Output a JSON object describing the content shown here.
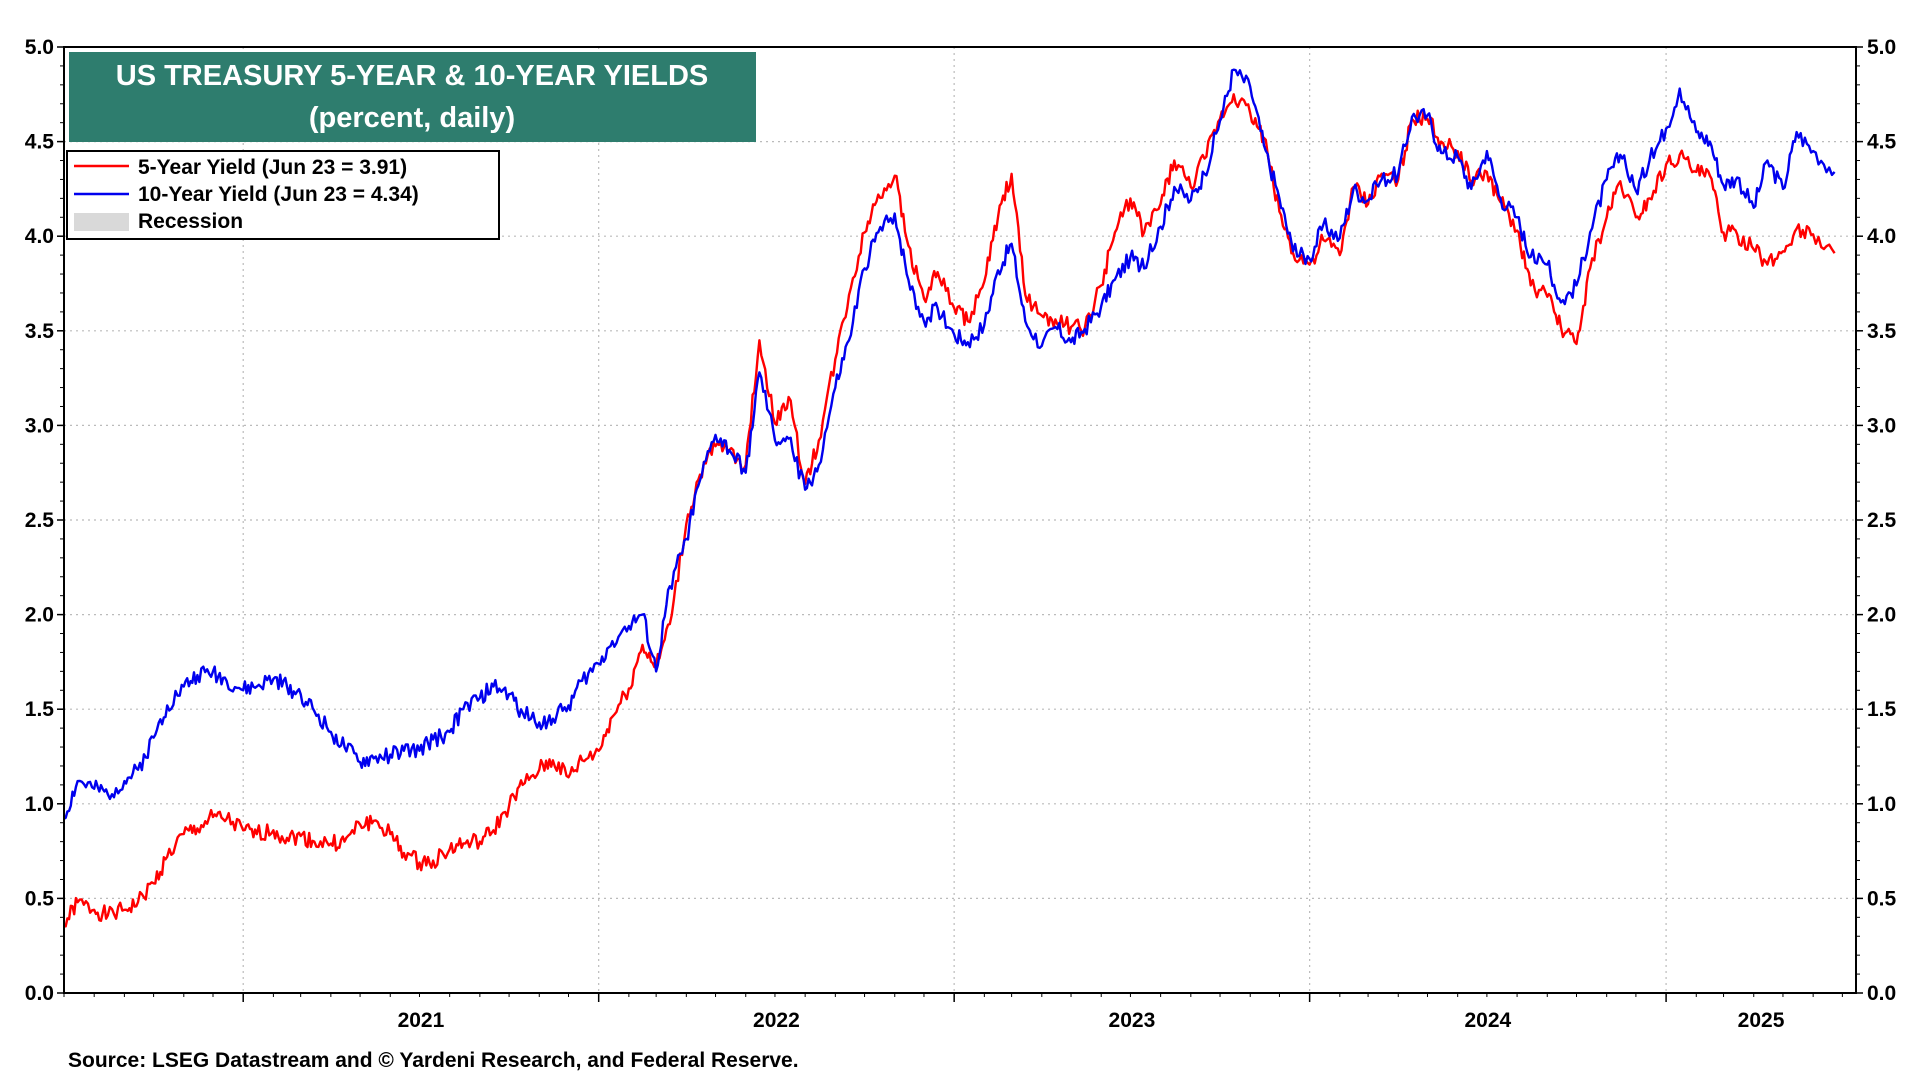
{
  "chart_data": {
    "type": "line",
    "title": "US TREASURY 5-YEAR & 10-YEAR YIELDS",
    "subtitle": "(percent, daily)",
    "source": "Source: LSEG Datastream and © Yardeni Research, and Federal Reserve.",
    "ylim": [
      0,
      5
    ],
    "y_ticks": [
      "0.0",
      "0.5",
      "1.0",
      "1.5",
      "2.0",
      "2.5",
      "3.0",
      "3.5",
      "4.0",
      "4.5",
      "5.0"
    ],
    "x_range": [
      "2020-07-01",
      "2025-07-15"
    ],
    "year_labels": [
      "2021",
      "2022",
      "2023",
      "2024",
      "2025"
    ],
    "grid": true,
    "legend_position": "top-left",
    "colors": {
      "title_bg": "#2e7d6e",
      "five_year": "#ff0000",
      "ten_year": "#0000ee",
      "recession": "#d9d9d9",
      "grid": "#bbbbbb"
    },
    "legend": [
      {
        "label": "5-Year Yield (Jun 23 = 3.91)",
        "color": "#ff0000",
        "kind": "line"
      },
      {
        "label": "10-Year Yield (Jun 23 = 4.34)",
        "color": "#0000ee",
        "kind": "line"
      },
      {
        "label": "Recession",
        "color": "#d9d9d9",
        "kind": "box"
      }
    ],
    "series": [
      {
        "name": "5-Year Yield",
        "color": "#ff0000",
        "points": [
          [
            "2020-07-01",
            0.36
          ],
          [
            "2020-07-15",
            0.48
          ],
          [
            "2020-08-01",
            0.44
          ],
          [
            "2020-08-15",
            0.41
          ],
          [
            "2020-09-01",
            0.44
          ],
          [
            "2020-09-15",
            0.48
          ],
          [
            "2020-10-01",
            0.58
          ],
          [
            "2020-10-15",
            0.72
          ],
          [
            "2020-11-01",
            0.84
          ],
          [
            "2020-11-15",
            0.87
          ],
          [
            "2020-12-01",
            0.93
          ],
          [
            "2020-12-15",
            0.92
          ],
          [
            "2021-01-01",
            0.86
          ],
          [
            "2021-01-15",
            0.84
          ],
          [
            "2021-02-01",
            0.86
          ],
          [
            "2021-02-15",
            0.82
          ],
          [
            "2021-03-01",
            0.83
          ],
          [
            "2021-03-15",
            0.8
          ],
          [
            "2021-04-01",
            0.79
          ],
          [
            "2021-04-15",
            0.8
          ],
          [
            "2021-05-01",
            0.89
          ],
          [
            "2021-05-15",
            0.91
          ],
          [
            "2021-06-01",
            0.84
          ],
          [
            "2021-06-15",
            0.74
          ],
          [
            "2021-07-01",
            0.69
          ],
          [
            "2021-07-15",
            0.7
          ],
          [
            "2021-08-01",
            0.76
          ],
          [
            "2021-08-15",
            0.79
          ],
          [
            "2021-09-01",
            0.8
          ],
          [
            "2021-09-15",
            0.86
          ],
          [
            "2021-10-01",
            0.99
          ],
          [
            "2021-10-15",
            1.1
          ],
          [
            "2021-11-01",
            1.18
          ],
          [
            "2021-11-15",
            1.23
          ],
          [
            "2021-12-01",
            1.14
          ],
          [
            "2021-12-15",
            1.23
          ],
          [
            "2022-01-01",
            1.28
          ],
          [
            "2022-01-15",
            1.46
          ],
          [
            "2022-02-01",
            1.61
          ],
          [
            "2022-02-15",
            1.84
          ],
          [
            "2022-03-01",
            1.72
          ],
          [
            "2022-03-15",
            1.95
          ],
          [
            "2022-04-01",
            2.48
          ],
          [
            "2022-04-15",
            2.74
          ],
          [
            "2022-05-01",
            2.89
          ],
          [
            "2022-05-15",
            2.87
          ],
          [
            "2022-06-01",
            2.79
          ],
          [
            "2022-06-15",
            3.45
          ],
          [
            "2022-07-01",
            3.01
          ],
          [
            "2022-07-15",
            3.15
          ],
          [
            "2022-08-01",
            2.69
          ],
          [
            "2022-08-15",
            2.92
          ],
          [
            "2022-09-01",
            3.35
          ],
          [
            "2022-09-15",
            3.69
          ],
          [
            "2022-10-01",
            4.02
          ],
          [
            "2022-10-15",
            4.22
          ],
          [
            "2022-11-01",
            4.32
          ],
          [
            "2022-11-15",
            3.95
          ],
          [
            "2022-12-01",
            3.67
          ],
          [
            "2022-12-15",
            3.81
          ],
          [
            "2023-01-01",
            3.62
          ],
          [
            "2023-01-15",
            3.55
          ],
          [
            "2023-02-01",
            3.76
          ],
          [
            "2023-02-15",
            4.1
          ],
          [
            "2023-03-01",
            4.33
          ],
          [
            "2023-03-15",
            3.69
          ],
          [
            "2023-04-01",
            3.58
          ],
          [
            "2023-04-15",
            3.56
          ],
          [
            "2023-05-01",
            3.52
          ],
          [
            "2023-05-15",
            3.51
          ],
          [
            "2023-06-01",
            3.74
          ],
          [
            "2023-06-15",
            4.02
          ],
          [
            "2023-07-01",
            4.2
          ],
          [
            "2023-07-15",
            4.02
          ],
          [
            "2023-08-01",
            4.17
          ],
          [
            "2023-08-15",
            4.4
          ],
          [
            "2023-09-01",
            4.26
          ],
          [
            "2023-09-15",
            4.41
          ],
          [
            "2023-10-01",
            4.62
          ],
          [
            "2023-10-15",
            4.75
          ],
          [
            "2023-11-01",
            4.65
          ],
          [
            "2023-11-15",
            4.52
          ],
          [
            "2023-12-01",
            4.13
          ],
          [
            "2023-12-15",
            3.91
          ],
          [
            "2024-01-01",
            3.85
          ],
          [
            "2024-01-15",
            3.98
          ],
          [
            "2024-02-01",
            3.9
          ],
          [
            "2024-02-15",
            4.26
          ],
          [
            "2024-03-01",
            4.17
          ],
          [
            "2024-03-15",
            4.33
          ],
          [
            "2024-04-01",
            4.3
          ],
          [
            "2024-04-15",
            4.62
          ],
          [
            "2024-05-01",
            4.62
          ],
          [
            "2024-05-15",
            4.5
          ],
          [
            "2024-06-01",
            4.45
          ],
          [
            "2024-06-15",
            4.29
          ],
          [
            "2024-07-01",
            4.34
          ],
          [
            "2024-07-15",
            4.18
          ],
          [
            "2024-08-01",
            4.03
          ],
          [
            "2024-08-15",
            3.74
          ],
          [
            "2024-09-01",
            3.68
          ],
          [
            "2024-09-15",
            3.52
          ],
          [
            "2024-10-01",
            3.43
          ],
          [
            "2024-10-15",
            3.83
          ],
          [
            "2024-11-01",
            4.1
          ],
          [
            "2024-11-15",
            4.29
          ],
          [
            "2024-12-01",
            4.1
          ],
          [
            "2024-12-15",
            4.2
          ],
          [
            "2025-01-01",
            4.38
          ],
          [
            "2025-01-15",
            4.43
          ],
          [
            "2025-02-01",
            4.34
          ],
          [
            "2025-02-15",
            4.32
          ],
          [
            "2025-03-01",
            4.02
          ],
          [
            "2025-03-15",
            4.01
          ],
          [
            "2025-04-01",
            3.93
          ],
          [
            "2025-04-15",
            3.85
          ],
          [
            "2025-05-01",
            3.92
          ],
          [
            "2025-05-15",
            4.04
          ],
          [
            "2025-06-01",
            4.01
          ],
          [
            "2025-06-23",
            3.91
          ]
        ]
      },
      {
        "name": "10-Year Yield",
        "color": "#0000ee",
        "points": [
          [
            "2020-07-01",
            0.92
          ],
          [
            "2020-07-15",
            1.12
          ],
          [
            "2020-08-01",
            1.08
          ],
          [
            "2020-08-15",
            1.05
          ],
          [
            "2020-09-01",
            1.12
          ],
          [
            "2020-09-15",
            1.18
          ],
          [
            "2020-10-01",
            1.35
          ],
          [
            "2020-10-15",
            1.52
          ],
          [
            "2020-11-01",
            1.62
          ],
          [
            "2020-11-15",
            1.68
          ],
          [
            "2020-12-01",
            1.7
          ],
          [
            "2020-12-15",
            1.65
          ],
          [
            "2021-01-01",
            1.6
          ],
          [
            "2021-01-15",
            1.62
          ],
          [
            "2021-02-01",
            1.66
          ],
          [
            "2021-02-15",
            1.62
          ],
          [
            "2021-03-01",
            1.58
          ],
          [
            "2021-03-15",
            1.49
          ],
          [
            "2021-04-01",
            1.38
          ],
          [
            "2021-04-15",
            1.3
          ],
          [
            "2021-05-01",
            1.22
          ],
          [
            "2021-05-15",
            1.24
          ],
          [
            "2021-06-01",
            1.26
          ],
          [
            "2021-06-15",
            1.28
          ],
          [
            "2021-07-01",
            1.28
          ],
          [
            "2021-07-15",
            1.34
          ],
          [
            "2021-08-01",
            1.38
          ],
          [
            "2021-08-15",
            1.5
          ],
          [
            "2021-09-01",
            1.56
          ],
          [
            "2021-09-15",
            1.62
          ],
          [
            "2021-10-01",
            1.58
          ],
          [
            "2021-10-15",
            1.48
          ],
          [
            "2021-11-01",
            1.43
          ],
          [
            "2021-11-15",
            1.45
          ],
          [
            "2021-12-01",
            1.52
          ],
          [
            "2021-12-15",
            1.65
          ],
          [
            "2022-01-01",
            1.74
          ],
          [
            "2022-01-15",
            1.86
          ],
          [
            "2022-02-01",
            1.94
          ],
          [
            "2022-02-15",
            2.0
          ],
          [
            "2022-03-01",
            1.7
          ],
          [
            "2022-03-15",
            2.15
          ],
          [
            "2022-04-01",
            2.4
          ],
          [
            "2022-04-15",
            2.71
          ],
          [
            "2022-05-01",
            2.95
          ],
          [
            "2022-05-15",
            2.87
          ],
          [
            "2022-06-01",
            2.75
          ],
          [
            "2022-06-15",
            3.28
          ],
          [
            "2022-07-01",
            2.92
          ],
          [
            "2022-07-15",
            2.93
          ],
          [
            "2022-08-01",
            2.66
          ],
          [
            "2022-08-15",
            2.79
          ],
          [
            "2022-09-01",
            3.2
          ],
          [
            "2022-09-15",
            3.45
          ],
          [
            "2022-10-01",
            3.83
          ],
          [
            "2022-10-15",
            4.02
          ],
          [
            "2022-11-01",
            4.12
          ],
          [
            "2022-11-15",
            3.77
          ],
          [
            "2022-12-01",
            3.55
          ],
          [
            "2022-12-15",
            3.62
          ],
          [
            "2023-01-01",
            3.48
          ],
          [
            "2023-01-15",
            3.44
          ],
          [
            "2023-02-01",
            3.53
          ],
          [
            "2023-02-15",
            3.82
          ],
          [
            "2023-03-01",
            3.96
          ],
          [
            "2023-03-15",
            3.55
          ],
          [
            "2023-04-01",
            3.42
          ],
          [
            "2023-04-15",
            3.52
          ],
          [
            "2023-05-01",
            3.44
          ],
          [
            "2023-05-15",
            3.51
          ],
          [
            "2023-06-01",
            3.63
          ],
          [
            "2023-06-15",
            3.77
          ],
          [
            "2023-07-01",
            3.89
          ],
          [
            "2023-07-15",
            3.83
          ],
          [
            "2023-08-01",
            4.05
          ],
          [
            "2023-08-15",
            4.26
          ],
          [
            "2023-09-01",
            4.19
          ],
          [
            "2023-09-15",
            4.33
          ],
          [
            "2023-10-01",
            4.61
          ],
          [
            "2023-10-15",
            4.88
          ],
          [
            "2023-11-01",
            4.79
          ],
          [
            "2023-11-15",
            4.48
          ],
          [
            "2023-12-01",
            4.2
          ],
          [
            "2023-12-15",
            3.92
          ],
          [
            "2024-01-01",
            3.88
          ],
          [
            "2024-01-15",
            4.06
          ],
          [
            "2024-02-01",
            3.99
          ],
          [
            "2024-02-15",
            4.25
          ],
          [
            "2024-03-01",
            4.19
          ],
          [
            "2024-03-15",
            4.3
          ],
          [
            "2024-04-01",
            4.33
          ],
          [
            "2024-04-15",
            4.63
          ],
          [
            "2024-05-01",
            4.64
          ],
          [
            "2024-05-15",
            4.44
          ],
          [
            "2024-06-01",
            4.42
          ],
          [
            "2024-06-15",
            4.25
          ],
          [
            "2024-07-01",
            4.45
          ],
          [
            "2024-07-15",
            4.2
          ],
          [
            "2024-08-01",
            4.1
          ],
          [
            "2024-08-15",
            3.89
          ],
          [
            "2024-09-01",
            3.85
          ],
          [
            "2024-09-15",
            3.65
          ],
          [
            "2024-10-01",
            3.74
          ],
          [
            "2024-10-15",
            4.02
          ],
          [
            "2024-11-01",
            4.3
          ],
          [
            "2024-11-15",
            4.43
          ],
          [
            "2024-12-01",
            4.24
          ],
          [
            "2024-12-15",
            4.4
          ],
          [
            "2025-01-01",
            4.57
          ],
          [
            "2025-01-15",
            4.78
          ],
          [
            "2025-02-01",
            4.55
          ],
          [
            "2025-02-15",
            4.5
          ],
          [
            "2025-03-01",
            4.27
          ],
          [
            "2025-03-15",
            4.31
          ],
          [
            "2025-04-01",
            4.15
          ],
          [
            "2025-04-15",
            4.4
          ],
          [
            "2025-05-01",
            4.25
          ],
          [
            "2025-05-15",
            4.55
          ],
          [
            "2025-06-01",
            4.45
          ],
          [
            "2025-06-23",
            4.34
          ]
        ]
      }
    ]
  }
}
